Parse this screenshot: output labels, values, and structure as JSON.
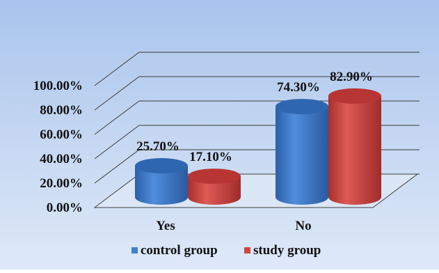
{
  "chart_data": {
    "type": "bar",
    "categories": [
      "Yes",
      "No"
    ],
    "series": [
      {
        "name": "control group",
        "values": [
          25.7,
          74.3
        ],
        "labels": [
          "25.70%",
          "74.30%"
        ],
        "color": "#3f7fd0"
      },
      {
        "name": "study group",
        "values": [
          17.1,
          82.9
        ],
        "labels": [
          "17.10%",
          "82.90%"
        ],
        "color": "#cf4643"
      }
    ],
    "yticks": [
      "0.00%",
      "20.00%",
      "40.00%",
      "60.00%",
      "80.00%",
      "100.00%"
    ],
    "ylim": [
      0,
      100
    ],
    "grid": true,
    "legend_position": "bottom",
    "title": "",
    "xlabel": "",
    "ylabel": "",
    "style": "3d-cylinder"
  }
}
